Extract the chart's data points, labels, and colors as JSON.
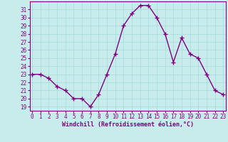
{
  "x": [
    0,
    1,
    2,
    3,
    4,
    5,
    6,
    7,
    8,
    9,
    10,
    11,
    12,
    13,
    14,
    15,
    16,
    17,
    18,
    19,
    20,
    21,
    22,
    23
  ],
  "y": [
    23,
    23,
    22.5,
    21.5,
    21,
    20,
    20,
    19,
    20.5,
    23,
    25.5,
    29,
    30.5,
    31.5,
    31.5,
    30,
    28,
    24.5,
    27.5,
    25.5,
    25,
    23,
    21,
    20.5
  ],
  "color": "#800080",
  "bg_color": "#c8ecec",
  "grid_color": "#aadddd",
  "xlabel": "Windchill (Refroidissement éolien,°C)",
  "ylim": [
    18.5,
    32
  ],
  "yticks": [
    19,
    20,
    21,
    22,
    23,
    24,
    25,
    26,
    27,
    28,
    29,
    30,
    31
  ],
  "xticks": [
    0,
    1,
    2,
    3,
    4,
    5,
    6,
    7,
    8,
    9,
    10,
    11,
    12,
    13,
    14,
    15,
    16,
    17,
    18,
    19,
    20,
    21,
    22,
    23
  ],
  "xlim": [
    -0.3,
    23.3
  ],
  "marker": "+",
  "linewidth": 1.0,
  "markersize": 4,
  "tick_fontsize": 5.5,
  "xlabel_fontsize": 6.0
}
